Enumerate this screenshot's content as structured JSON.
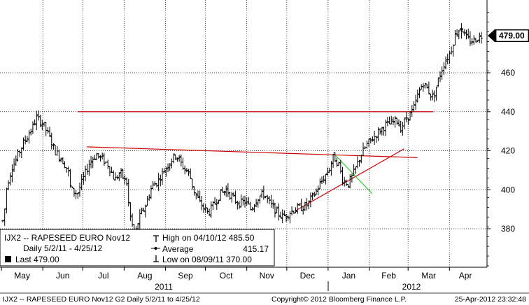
{
  "chart_data": {
    "type": "ohlc",
    "ticker": "IJX2",
    "title": "IJX2 -- RAPESEED EURO Nov12",
    "period_label": "Daily 5/2/11 - 4/25/12",
    "last_label": "Last 479.00",
    "high_label": "High on 04/10/12 485.50",
    "average_label": "Average",
    "average_value": "415.17",
    "low_label": "Low on 08/09/11 370.00",
    "last_value": 479.0,
    "last_value_text": "479.00",
    "high_value": 485.5,
    "average": 415.17,
    "low_value": 370.0,
    "y_axis": {
      "ylim": [
        361,
        495
      ],
      "ticks": [
        380,
        400,
        420,
        440,
        460
      ],
      "tick_labels": [
        "380",
        "400",
        "420",
        "440",
        "460"
      ],
      "side": "right"
    },
    "x_axis": {
      "months": [
        "May",
        "Jun",
        "Jul",
        "Aug",
        "Sep",
        "Oct",
        "Nov",
        "Dec",
        "Jan",
        "Feb",
        "Mar",
        "Apr"
      ],
      "years": [
        "2011",
        "2012"
      ]
    },
    "grid": true,
    "trendlines": [
      {
        "name": "resistance",
        "color": "#cc0000",
        "start": [
          "2011-06-27",
          440.0
        ],
        "end": [
          "2012-03-20",
          440.0
        ]
      },
      {
        "name": "falling",
        "color": "#cc0000",
        "start": [
          "2011-07-04",
          422.0
        ],
        "end": [
          "2012-03-08",
          416.5
        ]
      },
      {
        "name": "support",
        "color": "#cc0000",
        "start": [
          "2011-12-07",
          389.0
        ],
        "end": [
          "2012-02-27",
          421.0
        ]
      },
      {
        "name": "green",
        "color": "#33cc33",
        "start": [
          "2012-01-06",
          418.0
        ],
        "end": [
          "2012-02-03",
          398.0
        ]
      }
    ],
    "price_anchors": [
      [
        "2011-05-02",
        384
      ],
      [
        "2011-05-03",
        387
      ],
      [
        "2011-05-05",
        402
      ],
      [
        "2011-05-09",
        412
      ],
      [
        "2011-05-11",
        414
      ],
      [
        "2011-05-16",
        422
      ],
      [
        "2011-05-20",
        427
      ],
      [
        "2011-05-25",
        433
      ],
      [
        "2011-05-27",
        437
      ],
      [
        "2011-06-01",
        434
      ],
      [
        "2011-06-06",
        427
      ],
      [
        "2011-06-10",
        420
      ],
      [
        "2011-06-15",
        416
      ],
      [
        "2011-06-20",
        410
      ],
      [
        "2011-06-22",
        400
      ],
      [
        "2011-06-27",
        398
      ],
      [
        "2011-07-01",
        405
      ],
      [
        "2011-07-06",
        414
      ],
      [
        "2011-07-11",
        418
      ],
      [
        "2011-07-15",
        416
      ],
      [
        "2011-07-20",
        413
      ],
      [
        "2011-07-25",
        405
      ],
      [
        "2011-07-29",
        409
      ],
      [
        "2011-08-03",
        403
      ],
      [
        "2011-08-05",
        388
      ],
      [
        "2011-08-09",
        376
      ],
      [
        "2011-08-12",
        385
      ],
      [
        "2011-08-17",
        392
      ],
      [
        "2011-08-22",
        402
      ],
      [
        "2011-08-26",
        404
      ],
      [
        "2011-08-31",
        410
      ],
      [
        "2011-09-05",
        415
      ],
      [
        "2011-09-09",
        418
      ],
      [
        "2011-09-14",
        412
      ],
      [
        "2011-09-19",
        408
      ],
      [
        "2011-09-22",
        400
      ],
      [
        "2011-09-27",
        393
      ],
      [
        "2011-10-03",
        388
      ],
      [
        "2011-10-07",
        392
      ],
      [
        "2011-10-12",
        398
      ],
      [
        "2011-10-17",
        400
      ],
      [
        "2011-10-21",
        396
      ],
      [
        "2011-10-26",
        393
      ],
      [
        "2011-10-31",
        394
      ],
      [
        "2011-11-04",
        390
      ],
      [
        "2011-11-09",
        396
      ],
      [
        "2011-11-14",
        398
      ],
      [
        "2011-11-18",
        393
      ],
      [
        "2011-11-23",
        389
      ],
      [
        "2011-11-28",
        386
      ],
      [
        "2011-12-02",
        388
      ],
      [
        "2011-12-07",
        390
      ],
      [
        "2011-12-12",
        391
      ],
      [
        "2011-12-16",
        392
      ],
      [
        "2011-12-21",
        397
      ],
      [
        "2011-12-27",
        404
      ],
      [
        "2012-01-02",
        411
      ],
      [
        "2012-01-05",
        417
      ],
      [
        "2012-01-09",
        413
      ],
      [
        "2012-01-12",
        405
      ],
      [
        "2012-01-16",
        403
      ],
      [
        "2012-01-20",
        408
      ],
      [
        "2012-01-25",
        417
      ],
      [
        "2012-01-30",
        423
      ],
      [
        "2012-02-03",
        426
      ],
      [
        "2012-02-08",
        430
      ],
      [
        "2012-02-13",
        433
      ],
      [
        "2012-02-17",
        434
      ],
      [
        "2012-02-22",
        436
      ],
      [
        "2012-02-24",
        431
      ],
      [
        "2012-02-29",
        437
      ],
      [
        "2012-03-05",
        441
      ],
      [
        "2012-03-08",
        448
      ],
      [
        "2012-03-12",
        455
      ],
      [
        "2012-03-16",
        451
      ],
      [
        "2012-03-20",
        447
      ],
      [
        "2012-03-23",
        455
      ],
      [
        "2012-03-28",
        465
      ],
      [
        "2012-04-02",
        471
      ],
      [
        "2012-04-05",
        479
      ],
      [
        "2012-04-10",
        484
      ],
      [
        "2012-04-13",
        478
      ],
      [
        "2012-04-17",
        476
      ],
      [
        "2012-04-20",
        477
      ],
      [
        "2012-04-25",
        479
      ]
    ]
  },
  "footer": {
    "left": "IJX2 -- RAPESEED  EURO  Nov12    G2  Daily  5/2/11 to 4/25/12",
    "center": "Copyright© 2012 Bloomberg Finance L.P.",
    "right": "25-Apr-2012 23:32:48"
  }
}
